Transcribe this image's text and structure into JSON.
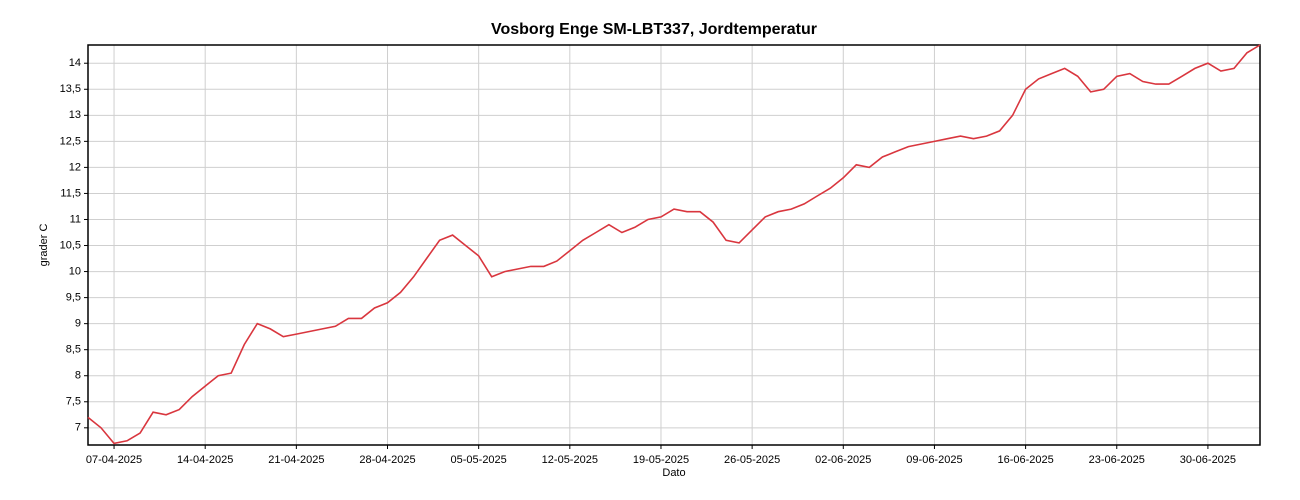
{
  "chart_data": {
    "type": "line",
    "title": "Vosborg Enge SM-LBT337, Jordtemperatur",
    "xlabel": "Dato",
    "ylabel": "grader C",
    "x": [
      "05-04-2025",
      "06-04-2025",
      "07-04-2025",
      "08-04-2025",
      "09-04-2025",
      "10-04-2025",
      "11-04-2025",
      "12-04-2025",
      "13-04-2025",
      "14-04-2025",
      "15-04-2025",
      "16-04-2025",
      "17-04-2025",
      "18-04-2025",
      "19-04-2025",
      "20-04-2025",
      "21-04-2025",
      "22-04-2025",
      "23-04-2025",
      "24-04-2025",
      "25-04-2025",
      "26-04-2025",
      "27-04-2025",
      "28-04-2025",
      "29-04-2025",
      "30-04-2025",
      "01-05-2025",
      "02-05-2025",
      "03-05-2025",
      "04-05-2025",
      "05-05-2025",
      "06-05-2025",
      "07-05-2025",
      "08-05-2025",
      "09-05-2025",
      "10-05-2025",
      "11-05-2025",
      "12-05-2025",
      "13-05-2025",
      "14-05-2025",
      "15-05-2025",
      "16-05-2025",
      "17-05-2025",
      "18-05-2025",
      "19-05-2025",
      "20-05-2025",
      "21-05-2025",
      "22-05-2025",
      "23-05-2025",
      "24-05-2025",
      "25-05-2025",
      "26-05-2025",
      "27-05-2025",
      "28-05-2025",
      "29-05-2025",
      "30-05-2025",
      "31-05-2025",
      "01-06-2025",
      "02-06-2025",
      "03-06-2025",
      "04-06-2025",
      "05-06-2025",
      "06-06-2025",
      "07-06-2025",
      "08-06-2025",
      "09-06-2025",
      "10-06-2025",
      "11-06-2025",
      "12-06-2025",
      "13-06-2025",
      "14-06-2025",
      "15-06-2025",
      "16-06-2025",
      "17-06-2025",
      "18-06-2025",
      "19-06-2025",
      "20-06-2025",
      "21-06-2025",
      "22-06-2025",
      "23-06-2025",
      "24-06-2025",
      "25-06-2025",
      "26-06-2025",
      "27-06-2025",
      "28-06-2025",
      "29-06-2025",
      "30-06-2025",
      "01-07-2025",
      "02-07-2025",
      "03-07-2025",
      "04-07-2025"
    ],
    "series": [
      {
        "name": "Jordtemperatur",
        "color": "#d9363e",
        "values": [
          7.2,
          7.0,
          6.7,
          6.75,
          6.9,
          7.3,
          7.25,
          7.35,
          7.6,
          7.8,
          8.0,
          8.05,
          8.6,
          9.0,
          8.9,
          8.75,
          8.8,
          8.85,
          8.9,
          8.95,
          9.1,
          9.1,
          9.3,
          9.4,
          9.6,
          9.9,
          10.25,
          10.6,
          10.7,
          10.5,
          10.3,
          9.9,
          10.0,
          10.05,
          10.1,
          10.1,
          10.2,
          10.4,
          10.6,
          10.75,
          10.9,
          10.75,
          10.85,
          11.0,
          11.05,
          11.2,
          11.15,
          11.15,
          10.95,
          10.6,
          10.55,
          10.8,
          11.05,
          11.15,
          11.2,
          11.3,
          11.45,
          11.6,
          11.8,
          12.05,
          12.0,
          12.2,
          12.3,
          12.4,
          12.45,
          12.5,
          12.55,
          12.6,
          12.55,
          12.6,
          12.7,
          13.0,
          13.5,
          13.7,
          13.8,
          13.9,
          13.75,
          13.45,
          13.5,
          13.75,
          13.8,
          13.65,
          13.6,
          13.6,
          13.75,
          13.9,
          14.0,
          13.85,
          13.9,
          14.2,
          14.35
        ]
      }
    ],
    "xlim": [
      "05-04-2025",
      "04-07-2025"
    ],
    "xticks": [
      "07-04-2025",
      "14-04-2025",
      "21-04-2025",
      "28-04-2025",
      "05-05-2025",
      "12-05-2025",
      "19-05-2025",
      "26-05-2025",
      "02-06-2025",
      "09-06-2025",
      "16-06-2025",
      "23-06-2025",
      "30-06-2025"
    ],
    "ylim": [
      6.67,
      14.35
    ],
    "yticks": [
      7,
      {
        "value": 7.5,
        "label": "7,5"
      },
      8,
      {
        "value": 8.5,
        "label": "8,5"
      },
      9,
      {
        "value": 9.5,
        "label": "9,5"
      },
      10,
      {
        "value": 10.5,
        "label": "10,5"
      },
      11,
      {
        "value": 11.5,
        "label": "11,5"
      },
      12,
      {
        "value": 12.5,
        "label": "12,5"
      },
      13,
      {
        "value": 13.5,
        "label": "13,5"
      },
      14
    ],
    "grid": true
  }
}
